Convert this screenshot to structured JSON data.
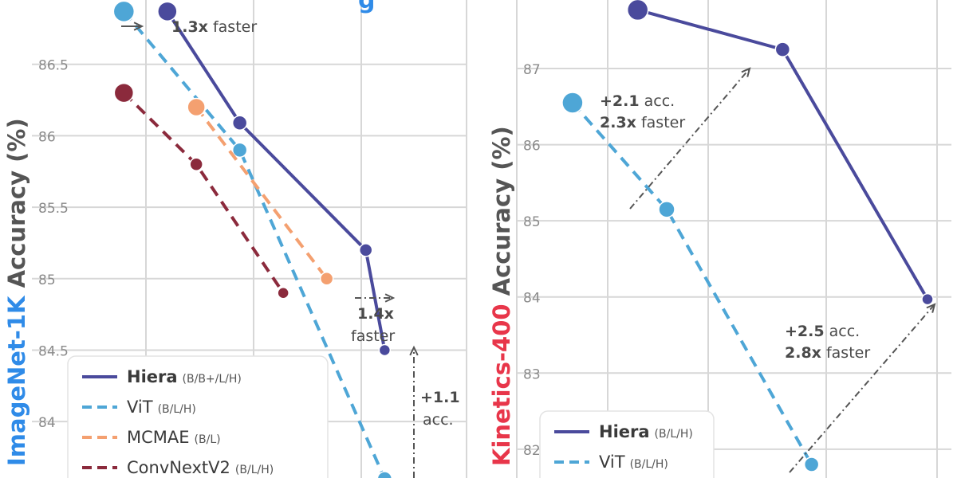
{
  "chart_data": [
    {
      "type": "line",
      "title_fragment": "g",
      "ylabel_prefix": "ImageNet-1K",
      "ylabel_rest": " Accuracy (%)",
      "ylabel_color": "#2f8be8",
      "y_ticks": [
        "84",
        "84.5",
        "85",
        "85.5",
        "86",
        "86.5"
      ],
      "ylim": [
        83.7,
        86.95
      ],
      "grid": true,
      "legend_position": "bottom-left",
      "series": [
        {
          "name": "Hiera",
          "sub": "(B/B+/L/H)",
          "color": "#4a4a9c",
          "dash": false,
          "points": [
            [
              1.1,
              86.87
            ],
            [
              1.6,
              86.09
            ],
            [
              2.47,
              85.2
            ],
            [
              2.6,
              84.5
            ]
          ],
          "sizes": [
            12,
            9,
            8,
            7
          ]
        },
        {
          "name": "ViT",
          "sub": "(B/L/H)",
          "color": "#4ea6d6",
          "dash": true,
          "points": [
            [
              0.8,
              86.87
            ],
            [
              1.6,
              85.9
            ],
            [
              2.6,
              83.6
            ]
          ],
          "sizes": [
            13,
            9,
            9
          ]
        },
        {
          "name": "MCMAE",
          "sub": "(B/L)",
          "color": "#f4a070",
          "dash": true,
          "points": [
            [
              1.3,
              86.2
            ],
            [
              2.2,
              85.0
            ]
          ],
          "sizes": [
            11,
            8
          ]
        },
        {
          "name": "ConvNextV2",
          "sub": "(B/L/H)",
          "color": "#8b2a3c",
          "dash": true,
          "points": [
            [
              0.8,
              86.3
            ],
            [
              1.3,
              85.8
            ],
            [
              1.9,
              84.9
            ]
          ],
          "sizes": [
            12,
            8,
            7
          ]
        }
      ],
      "annotations": [
        {
          "bold": "1.3x",
          "text": " faster"
        },
        {
          "bold": "1.4x",
          "text": "faster"
        },
        {
          "bold": "+1.1",
          "text": "acc."
        }
      ]
    },
    {
      "type": "line",
      "ylabel_prefix": "Kinetics-400",
      "ylabel_rest": " Accuracy (%)",
      "ylabel_color": "#e8364a",
      "y_ticks": [
        "82",
        "83",
        "84",
        "85",
        "86",
        "87"
      ],
      "ylim": [
        81.8,
        87.9
      ],
      "grid": true,
      "legend_position": "bottom-left",
      "series": [
        {
          "name": "Hiera",
          "sub": "(B/L/H)",
          "color": "#4a4a9c",
          "dash": false,
          "points": [
            [
              1.0,
              87.77
            ],
            [
              2.0,
              87.25
            ],
            [
              3.0,
              83.97
            ]
          ],
          "sizes": [
            13,
            9,
            7
          ]
        },
        {
          "name": "ViT",
          "sub": "(B/L/H)",
          "color": "#4ea6d6",
          "dash": true,
          "points": [
            [
              0.55,
              86.55
            ],
            [
              1.2,
              85.15
            ],
            [
              2.2,
              81.8
            ]
          ],
          "sizes": [
            13,
            10,
            9
          ]
        }
      ],
      "annotations": [
        {
          "bold1": "+2.1",
          "text1": " acc.",
          "bold2": "2.3x",
          "text2": " faster"
        },
        {
          "bold1": "+2.5",
          "text1": " acc.",
          "bold2": "2.8x",
          "text2": " faster"
        }
      ]
    }
  ]
}
